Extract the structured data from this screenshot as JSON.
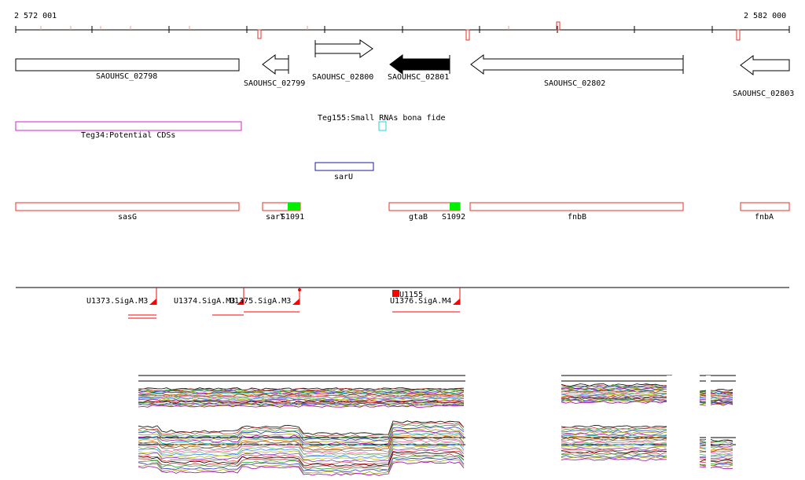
{
  "ruler": {
    "start_label": "2 572 001",
    "end_label": "2 582 000"
  },
  "genes": [
    {
      "label": "SAOUHSC_02798",
      "strand": "+",
      "filled": false
    },
    {
      "label": "SAOUHSC_02799",
      "strand": "-",
      "filled": false
    },
    {
      "label": "SAOUHSC_02800",
      "strand": "+",
      "filled": false
    },
    {
      "label": "SAOUHSC_02801",
      "strand": "-",
      "filled": true
    },
    {
      "label": "SAOUHSC_02802",
      "strand": "-",
      "filled": false
    },
    {
      "label": "SAOUHSC_02803",
      "strand": "-",
      "filled": false
    }
  ],
  "features": {
    "teg34": "Teg34:Potential CDSs",
    "teg155": "Teg155:Small RNAs bona fide",
    "saru": "sarU"
  },
  "annotations": [
    {
      "label": "sasG"
    },
    {
      "label": "sarT"
    },
    {
      "label": "S1091"
    },
    {
      "label": "gtaB"
    },
    {
      "label": "S1092"
    },
    {
      "label": "fnbB"
    },
    {
      "label": "fnbA"
    }
  ],
  "promoters": [
    {
      "label": "U1373.SigA.M3"
    },
    {
      "label": "U1374.SigA.M3"
    },
    {
      "label": "U1375.SigA.M3"
    },
    {
      "label": "U1155"
    },
    {
      "label": "U1376.SigA.M4"
    }
  ],
  "colors": {
    "annotation": "#e8302a",
    "potential_cds": "#d020d0",
    "small_rna": "#20d0e0",
    "saru": "#1a1aa0",
    "green_feature": "#00ee00",
    "promoter": "#ff0000"
  }
}
